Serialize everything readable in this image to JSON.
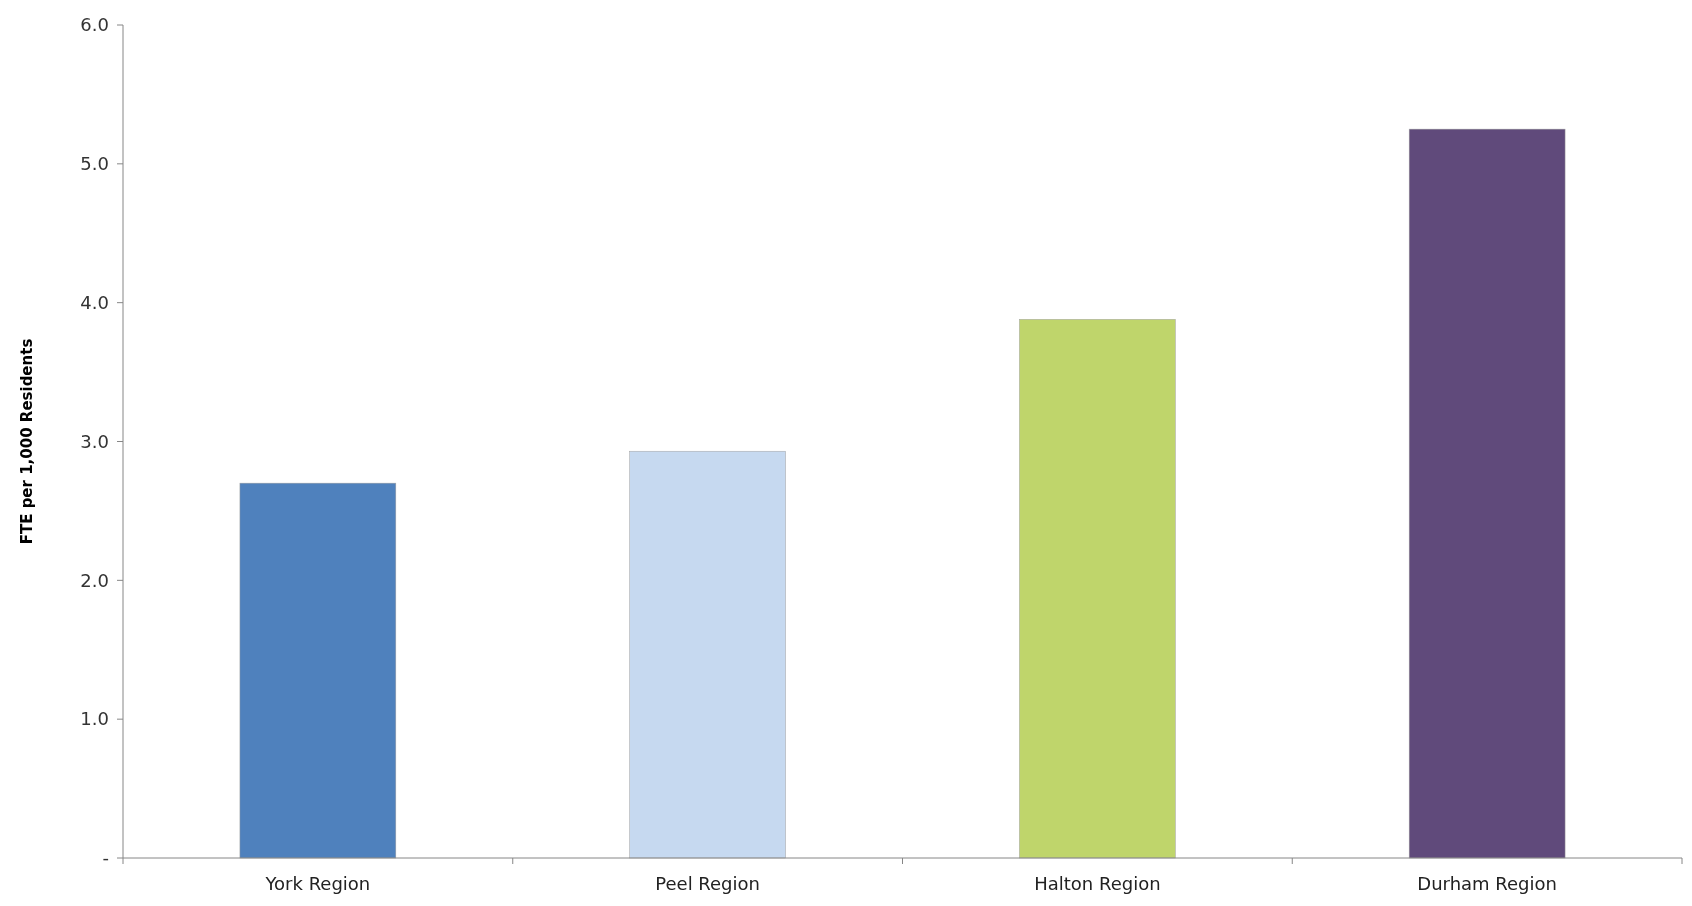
{
  "chart_data": {
    "type": "bar",
    "ylabel": "FTE per 1,000 Residents",
    "categories": [
      "York Region",
      "Peel Region",
      "Halton Region",
      "Durham Region"
    ],
    "values": [
      2.7,
      2.93,
      3.88,
      5.25
    ],
    "colors": [
      "#4f81bd",
      "#c6d9f0",
      "#bfd56b",
      "#604a7b"
    ],
    "ylim": [
      0,
      6
    ],
    "yticks": [
      {
        "value": 0,
        "label": "-"
      },
      {
        "value": 1,
        "label": "1.0"
      },
      {
        "value": 2,
        "label": "2.0"
      },
      {
        "value": 3,
        "label": "3.0"
      },
      {
        "value": 4,
        "label": "4.0"
      },
      {
        "value": 5,
        "label": "5.0"
      },
      {
        "value": 6,
        "label": "6.0"
      }
    ],
    "grid": false
  }
}
